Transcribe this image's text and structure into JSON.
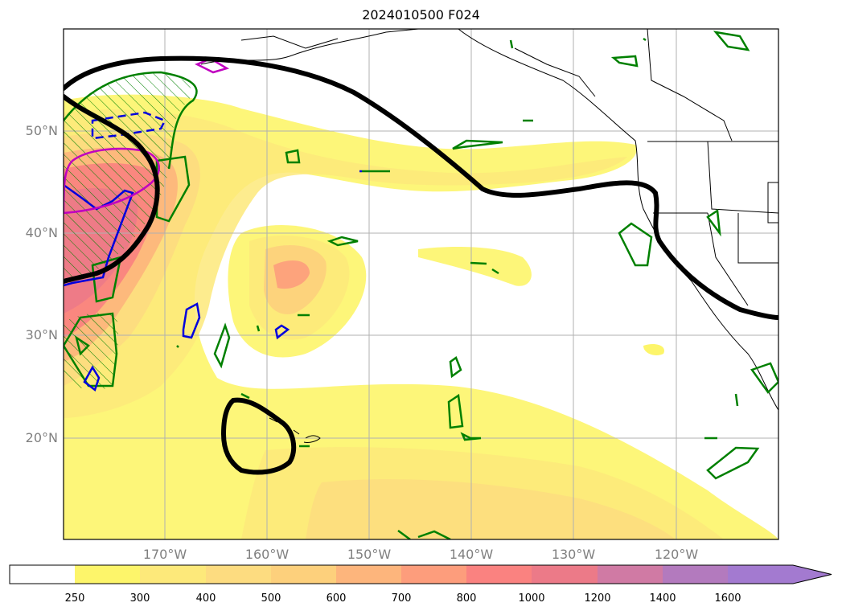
{
  "title": "2024010500 F024",
  "map": {
    "lat_ticks": [
      "50°N",
      "40°N",
      "30°N",
      "20°N"
    ],
    "lon_ticks": [
      "170°W",
      "160°W",
      "150°W",
      "140°W",
      "130°W",
      "120°W"
    ],
    "contour_colors": {
      "black": "#000000",
      "green": "#008000",
      "blue": "#0000dd",
      "magenta": "#c000c0"
    }
  },
  "colorbar": {
    "levels": [
      "250",
      "300",
      "400",
      "500",
      "600",
      "700",
      "800",
      "1000",
      "1200",
      "1400",
      "1600"
    ],
    "colors": [
      "#ffffff",
      "#fdf56a",
      "#fde97a",
      "#fddc80",
      "#fdd07c",
      "#fdb57c",
      "#fd9d7c",
      "#fa8280",
      "#ec7a88",
      "#d07aa4",
      "#b37abe",
      "#a37ad0"
    ],
    "extend": "max"
  }
}
